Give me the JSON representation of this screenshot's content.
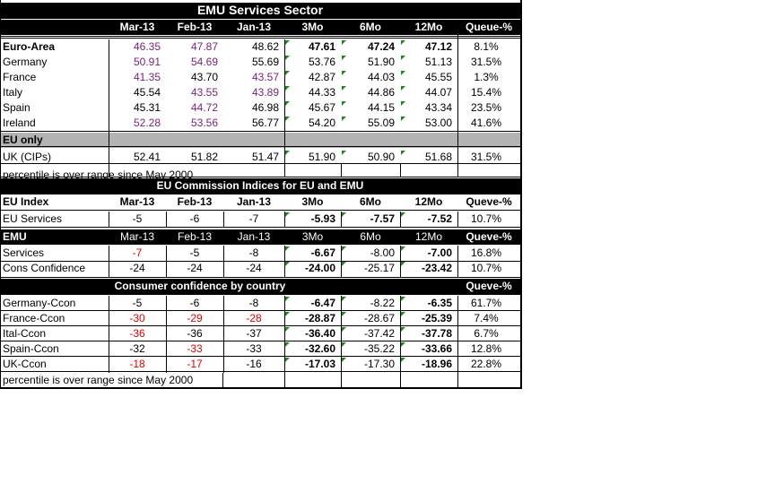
{
  "title": "EMU Services Sector",
  "columns": [
    "Mar-13",
    "Feb-13",
    "Jan-13",
    "3Mo",
    "6Mo",
    "12Mo",
    "Queue-%"
  ],
  "services": [
    {
      "label": "Euro-Area",
      "values": [
        "46.35",
        "47.87",
        "48.62",
        "47.61",
        "47.24",
        "47.12",
        "8.1%"
      ]
    },
    {
      "label": "Germany",
      "values": [
        "50.91",
        "54.69",
        "55.69",
        "53.76",
        "51.90",
        "51.13",
        "31.5%"
      ]
    },
    {
      "label": "France",
      "values": [
        "41.35",
        "43.70",
        "43.57",
        "42.87",
        "44.03",
        "45.55",
        "1.3%"
      ]
    },
    {
      "label": "Italy",
      "values": [
        "45.54",
        "43.55",
        "43.89",
        "44.33",
        "44.86",
        "44.07",
        "15.4%"
      ]
    },
    {
      "label": "Spain",
      "values": [
        "45.31",
        "44.72",
        "46.98",
        "45.67",
        "44.15",
        "43.34",
        "23.5%"
      ]
    },
    {
      "label": "Ireland",
      "values": [
        "52.28",
        "53.56",
        "56.77",
        "54.20",
        "55.09",
        "53.00",
        "41.6%"
      ]
    }
  ],
  "eu_only_label": "EU only",
  "uk_row": {
    "label": "UK (CIPs)",
    "values": [
      "52.41",
      "51.82",
      "51.47",
      "51.90",
      "50.90",
      "51.68",
      "31.5%"
    ]
  },
  "footnote": "percentile is over range since May 2000",
  "commission_title": "EU Commission Indices for EU and EMU",
  "eu_index_header": {
    "label": "EU Index",
    "values": [
      "Mar-13",
      "Feb-13",
      "Jan-13",
      "3Mo",
      "6Mo",
      "12Mo",
      "Queve-%"
    ]
  },
  "eu_services": {
    "label": "EU Services",
    "values": [
      "-5",
      "-6",
      "-7",
      "-5.93",
      "-7.57",
      "-7.52",
      "10.7%"
    ]
  },
  "emu_header": {
    "label": "EMU",
    "values": [
      "Mar-13",
      "Feb-13",
      "Jan-13",
      "3Mo",
      "6Mo",
      "12Mo",
      "Queve-%"
    ]
  },
  "emu_rows": [
    {
      "label": "Services",
      "values": [
        "-7",
        "-5",
        "-8",
        "-6.67",
        "-8.00",
        "-7.00",
        "16.8%"
      ]
    },
    {
      "label": "Cons Confidence",
      "values": [
        "-24",
        "-24",
        "-24",
        "-24.00",
        "-25.17",
        "-23.42",
        "10.7%"
      ]
    }
  ],
  "consumer_title": "Consumer confidence by country",
  "consumer_queue_label": "Queve-%",
  "consumer_rows": [
    {
      "label": "Germany-Ccon",
      "values": [
        "-5",
        "-6",
        "-8",
        "-6.47",
        "-8.22",
        "-6.35",
        "61.7%"
      ]
    },
    {
      "label": "France-Ccon",
      "values": [
        "-30",
        "-29",
        "-28",
        "-28.87",
        "-28.67",
        "-25.39",
        "7.4%"
      ]
    },
    {
      "label": "Ital-Ccon",
      "values": [
        "-36",
        "-36",
        "-37",
        "-36.40",
        "-37.42",
        "-37.78",
        "6.7%"
      ]
    },
    {
      "label": "Spain-Ccon",
      "values": [
        "-32",
        "-33",
        "-33",
        "-32.60",
        "-35.22",
        "-33.66",
        "12.8%"
      ]
    },
    {
      "label": "UK-Ccon",
      "values": [
        "-18",
        "-17",
        "-16",
        "-17.03",
        "-17.30",
        "-18.96",
        "22.8%"
      ]
    }
  ],
  "footnote2": "percentile is over range since May 2000",
  "colors": {
    "header_bg": "#000000",
    "gray_band": "#b3b3b3",
    "purple": "#7a1f7a",
    "red": "#e00000",
    "green_marker": "#1a8a1a"
  }
}
